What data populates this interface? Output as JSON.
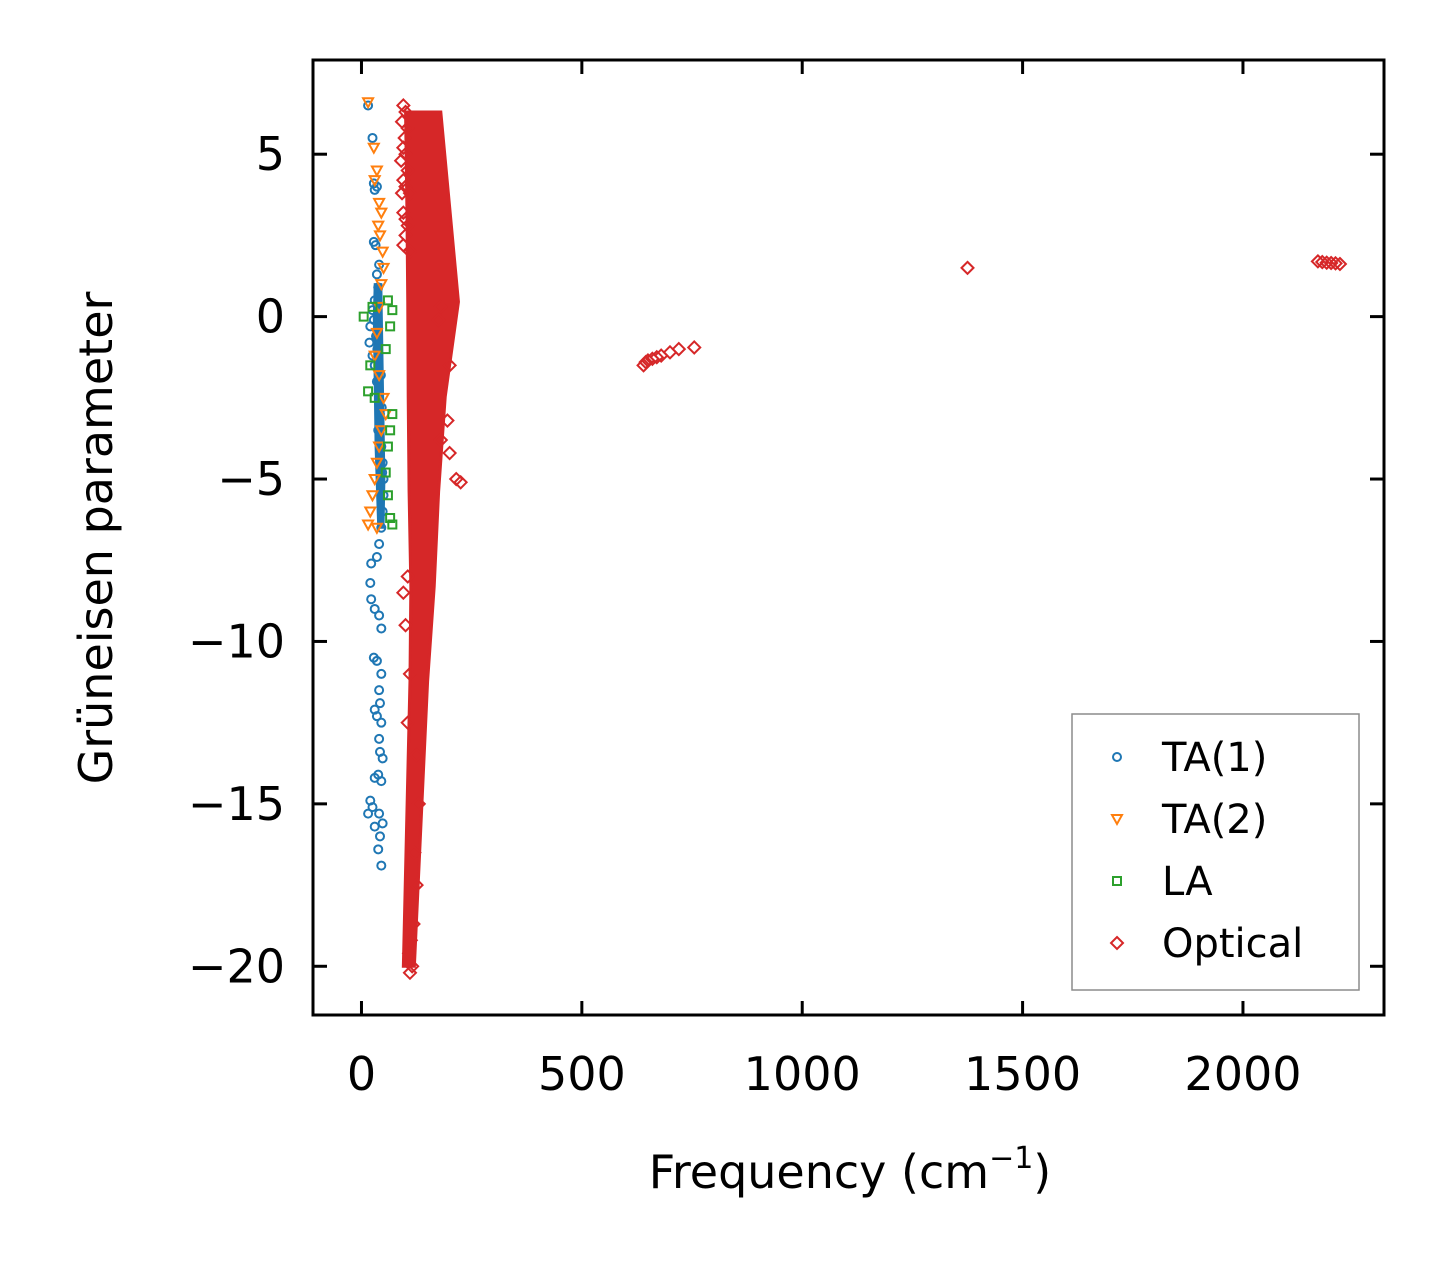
{
  "chart_data": {
    "type": "scatter",
    "title": "",
    "xlabel": "Frequency (cm",
    "xlabel_sup": "−1",
    "xlabel_close": ")",
    "ylabel": "Grüneisen parameter",
    "xlim": [
      -110,
      2320
    ],
    "ylim": [
      -21.5,
      7.9
    ],
    "xticks": [
      0,
      500,
      1000,
      1500,
      2000
    ],
    "xtick_labels": [
      "0",
      "500",
      "1000",
      "1500",
      "2000"
    ],
    "yticks": [
      5,
      0,
      -5,
      -10,
      -15,
      -20
    ],
    "ytick_labels": [
      "5",
      "0",
      "−5",
      "−10",
      "−15",
      "−20"
    ],
    "legend_position": "lower-right",
    "grid": false,
    "series": [
      {
        "name": "TA(1)",
        "marker": "circle",
        "color": "#1f77b4",
        "points": [
          [
            15,
            6.5
          ],
          [
            25,
            5.5
          ],
          [
            28,
            4.1
          ],
          [
            30,
            3.9
          ],
          [
            35,
            4.0
          ],
          [
            28,
            2.3
          ],
          [
            32,
            2.2
          ],
          [
            40,
            1.6
          ],
          [
            35,
            1.3
          ],
          [
            38,
            0.9
          ],
          [
            30,
            0.5
          ],
          [
            25,
            0.2
          ],
          [
            20,
            -0.3
          ],
          [
            18,
            -0.8
          ],
          [
            25,
            -1.2
          ],
          [
            30,
            -1.5
          ],
          [
            35,
            -2.0
          ],
          [
            40,
            -2.5
          ],
          [
            42,
            -3.0
          ],
          [
            38,
            -3.5
          ],
          [
            45,
            -4.0
          ],
          [
            48,
            -4.5
          ],
          [
            50,
            -5.0
          ],
          [
            50,
            -5.5
          ],
          [
            48,
            -6.0
          ],
          [
            45,
            -6.5
          ],
          [
            40,
            -7.0
          ],
          [
            35,
            -7.4
          ],
          [
            22,
            -7.6
          ],
          [
            20,
            -8.2
          ],
          [
            22,
            -8.7
          ],
          [
            30,
            -9.0
          ],
          [
            40,
            -9.2
          ],
          [
            45,
            -9.6
          ],
          [
            28,
            -10.5
          ],
          [
            35,
            -10.6
          ],
          [
            45,
            -11.0
          ],
          [
            40,
            -11.5
          ],
          [
            42,
            -11.9
          ],
          [
            30,
            -12.1
          ],
          [
            35,
            -12.3
          ],
          [
            45,
            -12.5
          ],
          [
            40,
            -13.0
          ],
          [
            42,
            -13.4
          ],
          [
            48,
            -13.6
          ],
          [
            38,
            -14.1
          ],
          [
            30,
            -14.2
          ],
          [
            45,
            -14.3
          ],
          [
            20,
            -14.9
          ],
          [
            25,
            -15.1
          ],
          [
            15,
            -15.3
          ],
          [
            40,
            -15.3
          ],
          [
            48,
            -15.6
          ],
          [
            30,
            -15.7
          ],
          [
            42,
            -16.0
          ],
          [
            38,
            -16.4
          ],
          [
            45,
            -16.9
          ],
          [
            28,
            -0.1
          ],
          [
            33,
            -0.6
          ],
          [
            36,
            -1.0
          ],
          [
            44,
            -1.8
          ],
          [
            46,
            -2.8
          ],
          [
            41,
            -3.8
          ],
          [
            47,
            -4.8
          ]
        ]
      },
      {
        "name": "TA(2)",
        "marker": "triangle-down",
        "color": "#ff7f0e",
        "points": [
          [
            15,
            6.6
          ],
          [
            28,
            5.2
          ],
          [
            35,
            4.5
          ],
          [
            30,
            4.2
          ],
          [
            40,
            3.5
          ],
          [
            45,
            3.2
          ],
          [
            38,
            2.8
          ],
          [
            42,
            2.5
          ],
          [
            48,
            2.0
          ],
          [
            50,
            1.5
          ],
          [
            45,
            1.0
          ],
          [
            40,
            0.3
          ],
          [
            35,
            -0.5
          ],
          [
            30,
            -1.2
          ],
          [
            40,
            -1.8
          ],
          [
            50,
            -2.5
          ],
          [
            55,
            -3.0
          ],
          [
            45,
            -3.5
          ],
          [
            40,
            -4.0
          ],
          [
            35,
            -4.5
          ],
          [
            30,
            -5.0
          ],
          [
            25,
            -5.5
          ],
          [
            20,
            -6.0
          ],
          [
            15,
            -6.4
          ],
          [
            35,
            -6.5
          ]
        ]
      },
      {
        "name": "LA",
        "marker": "square",
        "color": "#2ca02c",
        "points": [
          [
            5,
            0.0
          ],
          [
            25,
            0.3
          ],
          [
            60,
            0.5
          ],
          [
            70,
            0.2
          ],
          [
            65,
            -0.3
          ],
          [
            55,
            -1.0
          ],
          [
            20,
            -1.5
          ],
          [
            15,
            -2.3
          ],
          [
            30,
            -2.5
          ],
          [
            70,
            -3.0
          ],
          [
            65,
            -3.5
          ],
          [
            60,
            -4.0
          ],
          [
            55,
            -4.8
          ],
          [
            60,
            -5.5
          ],
          [
            65,
            -6.2
          ],
          [
            70,
            -6.4
          ]
        ]
      },
      {
        "name": "Optical",
        "marker": "diamond",
        "color": "#d62728",
        "points": [
          [
            95,
            6.5
          ],
          [
            100,
            6.3
          ],
          [
            92,
            6.0
          ],
          [
            105,
            5.8
          ],
          [
            98,
            5.5
          ],
          [
            95,
            5.2
          ],
          [
            100,
            5.0
          ],
          [
            90,
            4.8
          ],
          [
            105,
            4.5
          ],
          [
            95,
            4.2
          ],
          [
            100,
            4.0
          ],
          [
            92,
            3.8
          ],
          [
            110,
            3.8
          ],
          [
            95,
            3.2
          ],
          [
            100,
            3.0
          ],
          [
            105,
            2.8
          ],
          [
            100,
            2.5
          ],
          [
            95,
            2.2
          ],
          [
            110,
            2.0
          ],
          [
            180,
            0.3
          ],
          [
            175,
            -0.1
          ],
          [
            200,
            -1.5
          ],
          [
            195,
            -3.2
          ],
          [
            180,
            -3.8
          ],
          [
            200,
            -4.2
          ],
          [
            215,
            -5.0
          ],
          [
            225,
            -5.1
          ],
          [
            110,
            -20.2
          ],
          [
            115,
            -20.0
          ],
          [
            108,
            -19.6
          ],
          [
            112,
            -19.2
          ],
          [
            118,
            -18.7
          ],
          [
            125,
            -17.5
          ],
          [
            120,
            -16.5
          ],
          [
            130,
            -15.0
          ],
          [
            125,
            -13.5
          ],
          [
            105,
            -12.5
          ],
          [
            110,
            -11.0
          ],
          [
            100,
            -9.5
          ],
          [
            95,
            -8.5
          ],
          [
            105,
            -8.0
          ],
          [
            640,
            -1.5
          ],
          [
            645,
            -1.4
          ],
          [
            650,
            -1.35
          ],
          [
            660,
            -1.3
          ],
          [
            670,
            -1.25
          ],
          [
            680,
            -1.2
          ],
          [
            700,
            -1.1
          ],
          [
            720,
            -1.0
          ],
          [
            755,
            -0.95
          ],
          [
            1375,
            1.5
          ],
          [
            2170,
            1.7
          ],
          [
            2180,
            1.68
          ],
          [
            2190,
            1.66
          ],
          [
            2200,
            1.65
          ],
          [
            2210,
            1.64
          ],
          [
            2220,
            1.62
          ]
        ],
        "dense_regions": [
          {
            "y": [
              -20,
              6.3
            ],
            "x_min": [
              95,
              100,
              105,
              110,
              112,
              108,
              106,
              105,
              103,
              100
            ],
            "x_max": [
              120,
              130,
              140,
              150,
              165,
              175,
              190,
              220,
              200,
              180
            ]
          }
        ]
      }
    ]
  }
}
